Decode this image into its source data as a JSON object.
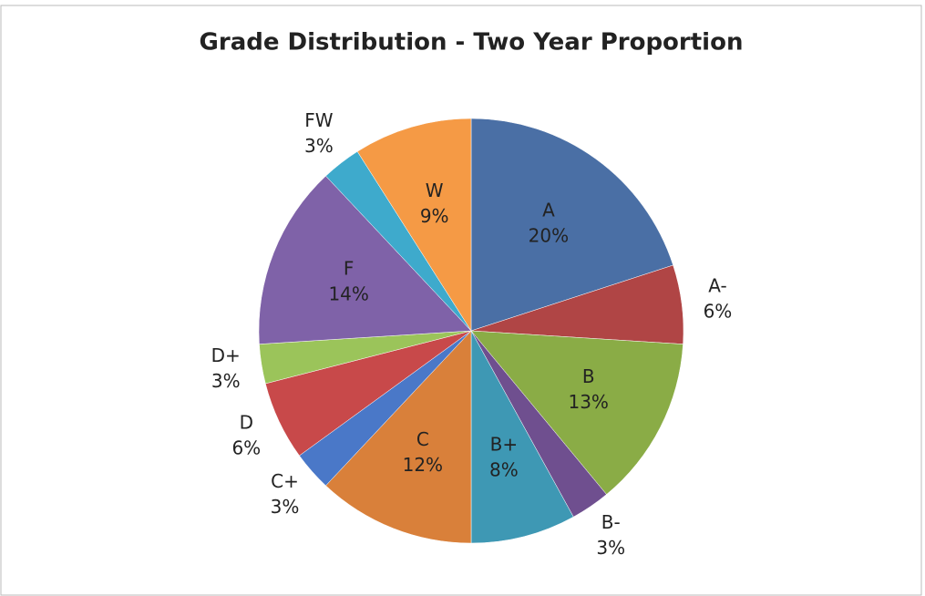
{
  "chart_data": {
    "type": "pie",
    "title": "Grade Distribution - Two Year Proportion",
    "categories": [
      "A",
      "A-",
      "B",
      "B-",
      "B+",
      "C",
      "C+",
      "D",
      "D+",
      "F",
      "FW",
      "W"
    ],
    "values": [
      20,
      6,
      13,
      3,
      8,
      12,
      3,
      6,
      3,
      14,
      3,
      9
    ],
    "value_labels": [
      "20%",
      "6%",
      "13%",
      "3%",
      "8%",
      "12%",
      "3%",
      "6%",
      "3%",
      "14%",
      "3%",
      "9%"
    ],
    "colors": [
      "#4a6fa5",
      "#b04545",
      "#8aac46",
      "#6f4f8f",
      "#3e98b4",
      "#d9803a",
      "#4a78c8",
      "#c8494a",
      "#9bc45a",
      "#7f62a8",
      "#3eaacc",
      "#f59a45"
    ]
  }
}
